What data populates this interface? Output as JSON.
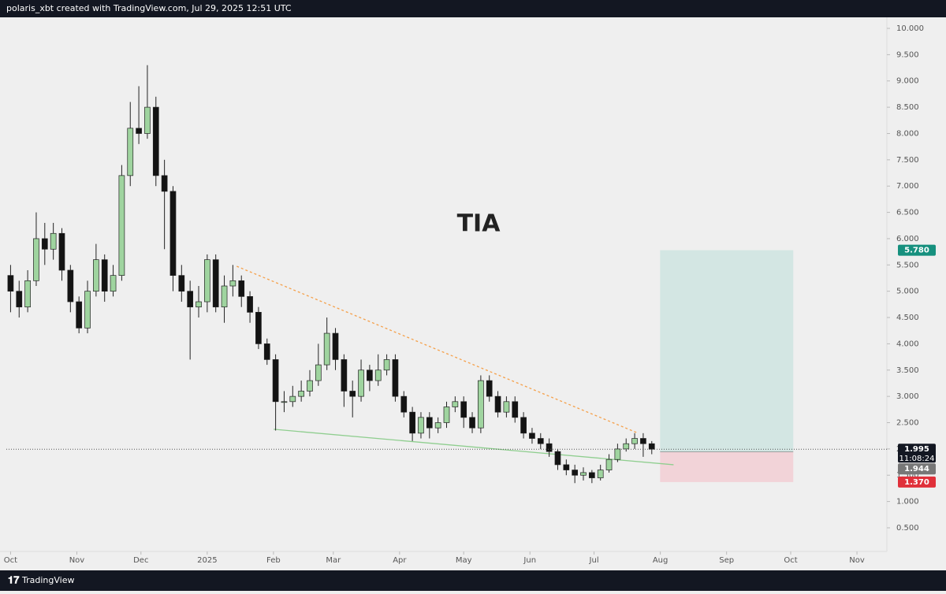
{
  "header": {
    "text": "polaris_xbt created with TradingView.com, Jul 29, 2025 12:51 UTC"
  },
  "chart_data": {
    "type": "candlestick",
    "title": "TIA",
    "x": [
      0,
      4,
      8,
      12,
      16,
      20,
      24,
      28,
      32,
      36,
      40,
      44,
      48,
      52,
      56,
      60,
      64,
      68,
      72,
      76,
      80,
      84,
      88,
      92,
      96,
      100,
      104,
      108,
      112,
      116,
      120,
      124,
      128,
      132,
      136,
      140,
      144,
      148,
      152,
      156,
      160,
      164,
      168,
      172,
      176,
      180,
      184,
      188,
      192,
      196,
      200,
      204,
      208,
      212,
      216,
      220,
      224,
      228,
      232,
      236,
      240,
      244,
      248,
      252,
      256,
      260,
      264,
      268,
      272,
      276,
      280,
      284,
      288,
      292,
      296,
      300
    ],
    "open": [
      5.3,
      5.0,
      4.7,
      5.2,
      6.0,
      5.8,
      6.1,
      5.4,
      4.8,
      4.3,
      5.0,
      5.6,
      5.0,
      5.3,
      7.2,
      8.1,
      8.0,
      8.5,
      7.2,
      6.9,
      5.3,
      5.0,
      4.7,
      4.8,
      5.6,
      4.7,
      5.1,
      5.2,
      4.9,
      4.6,
      4.0,
      3.7,
      2.9,
      2.9,
      3.0,
      3.1,
      3.3,
      3.6,
      4.2,
      3.7,
      3.1,
      3.0,
      3.5,
      3.3,
      3.5,
      3.7,
      3.0,
      2.7,
      2.3,
      2.6,
      2.4,
      2.5,
      2.8,
      2.9,
      2.6,
      2.4,
      3.3,
      3.0,
      2.7,
      2.9,
      2.6,
      2.3,
      2.2,
      2.1,
      1.95,
      1.7,
      1.6,
      1.5,
      1.55,
      1.45,
      1.6,
      1.8,
      2.0,
      2.1,
      2.2,
      2.1
    ],
    "high": [
      5.5,
      5.2,
      5.4,
      6.5,
      6.3,
      6.3,
      6.2,
      5.5,
      4.9,
      5.2,
      5.9,
      5.7,
      5.5,
      7.4,
      8.6,
      8.9,
      9.3,
      8.7,
      7.5,
      7.0,
      5.5,
      5.2,
      5.1,
      5.7,
      5.7,
      5.3,
      5.5,
      5.3,
      5.0,
      4.7,
      4.1,
      3.8,
      3.1,
      3.2,
      3.3,
      3.5,
      4.0,
      4.5,
      4.3,
      3.8,
      3.3,
      3.7,
      3.6,
      3.8,
      3.8,
      3.8,
      3.1,
      2.8,
      2.7,
      2.7,
      2.6,
      2.9,
      3.0,
      3.0,
      2.7,
      3.4,
      3.4,
      3.1,
      3.0,
      3.0,
      2.7,
      2.4,
      2.3,
      2.2,
      2.0,
      1.8,
      1.7,
      1.65,
      1.6,
      1.7,
      1.9,
      2.1,
      2.2,
      2.3,
      2.3,
      2.15
    ],
    "low": [
      4.6,
      4.5,
      4.6,
      5.1,
      5.5,
      5.6,
      5.2,
      4.6,
      4.2,
      4.2,
      4.9,
      4.8,
      4.9,
      5.2,
      7.0,
      7.8,
      7.9,
      7.0,
      5.8,
      5.0,
      4.8,
      3.7,
      4.5,
      4.6,
      4.6,
      4.4,
      4.9,
      4.7,
      4.4,
      3.9,
      3.6,
      2.35,
      2.7,
      2.8,
      2.9,
      3.0,
      3.2,
      3.5,
      3.5,
      2.8,
      2.6,
      2.9,
      3.1,
      3.2,
      3.4,
      2.9,
      2.6,
      2.15,
      2.2,
      2.2,
      2.3,
      2.4,
      2.7,
      2.4,
      2.3,
      2.3,
      2.9,
      2.6,
      2.6,
      2.5,
      2.2,
      2.1,
      2.0,
      1.85,
      1.6,
      1.5,
      1.35,
      1.4,
      1.35,
      1.4,
      1.55,
      1.75,
      1.95,
      2.0,
      1.85,
      1.9
    ],
    "close": [
      5.0,
      4.7,
      5.2,
      6.0,
      5.8,
      6.1,
      5.4,
      4.8,
      4.3,
      5.0,
      5.6,
      5.0,
      5.3,
      7.2,
      8.1,
      8.0,
      8.5,
      7.2,
      6.9,
      5.3,
      5.0,
      4.7,
      4.8,
      5.6,
      4.7,
      5.1,
      5.2,
      4.9,
      4.6,
      4.0,
      3.7,
      2.9,
      2.9,
      3.0,
      3.1,
      3.3,
      3.6,
      4.2,
      3.7,
      3.1,
      3.0,
      3.5,
      3.3,
      3.5,
      3.7,
      3.0,
      2.7,
      2.3,
      2.6,
      2.4,
      2.5,
      2.8,
      2.9,
      2.6,
      2.4,
      3.3,
      3.0,
      2.7,
      2.9,
      2.6,
      2.3,
      2.2,
      2.1,
      1.95,
      1.7,
      1.6,
      1.5,
      1.55,
      1.45,
      1.6,
      1.8,
      2.0,
      2.1,
      2.2,
      2.1,
      1.995
    ],
    "up_color": "#9fd49f",
    "down_color": "#131313",
    "xlim": [
      -2,
      410
    ],
    "xticks": [
      {
        "value": 0,
        "label": "Oct"
      },
      {
        "value": 31,
        "label": "Nov"
      },
      {
        "value": 61,
        "label": "Dec"
      },
      {
        "value": 92,
        "label": "2025"
      },
      {
        "value": 123,
        "label": "Feb"
      },
      {
        "value": 151,
        "label": "Mar"
      },
      {
        "value": 182,
        "label": "Apr"
      },
      {
        "value": 212,
        "label": "May"
      },
      {
        "value": 243,
        "label": "Jun"
      },
      {
        "value": 273,
        "label": "Jul"
      },
      {
        "value": 304,
        "label": "Aug"
      },
      {
        "value": 335,
        "label": "Sep"
      },
      {
        "value": 365,
        "label": "Oct"
      },
      {
        "value": 396,
        "label": "Nov"
      }
    ],
    "ylim": [
      0.05,
      10.21
    ],
    "yticks": [
      {
        "value": 0.5,
        "label": "0.500"
      },
      {
        "value": 1,
        "label": "1.000"
      },
      {
        "value": 1.5,
        "label": "1.500"
      },
      {
        "value": 2,
        "label": "2.000"
      },
      {
        "value": 2.5,
        "label": "2.500"
      },
      {
        "value": 3,
        "label": "3.000"
      },
      {
        "value": 3.5,
        "label": "3.500"
      },
      {
        "value": 4,
        "label": "4.000"
      },
      {
        "value": 4.5,
        "label": "4.500"
      },
      {
        "value": 5,
        "label": "5.000"
      },
      {
        "value": 5.5,
        "label": "5.500"
      },
      {
        "value": 6,
        "label": "6.000"
      },
      {
        "value": 6.5,
        "label": "6.500"
      },
      {
        "value": 7,
        "label": "7.000"
      },
      {
        "value": 7.5,
        "label": "7.500"
      },
      {
        "value": 8,
        "label": "8.000"
      },
      {
        "value": 8.5,
        "label": "8.500"
      },
      {
        "value": 9,
        "label": "9.000"
      },
      {
        "value": 9.5,
        "label": "9.500"
      },
      {
        "value": 10,
        "label": "10.000"
      }
    ],
    "grid": false,
    "last_price": {
      "value": 1.995,
      "countdown": "11:08:24"
    },
    "trendlines": [
      {
        "color": "#f5a04a",
        "dashed": true,
        "x": [
          105.8,
          293.6
        ],
        "y": [
          5.475,
          2.3
        ]
      },
      {
        "color": "#8fce8f",
        "dashed": false,
        "x": [
          123.1,
          310.2
        ],
        "y": [
          2.374,
          1.699
        ]
      }
    ],
    "position": {
      "x": [
        303.9,
        366.2
      ],
      "target": {
        "value": 5.78,
        "label": "5.780"
      },
      "entry": 1.944,
      "stop": {
        "value": 1.37,
        "label": "1.370"
      },
      "profit_color": "#d3e6e3",
      "loss_color": "#f2d3d8"
    }
  },
  "footer": {
    "brand": "TradingView"
  }
}
